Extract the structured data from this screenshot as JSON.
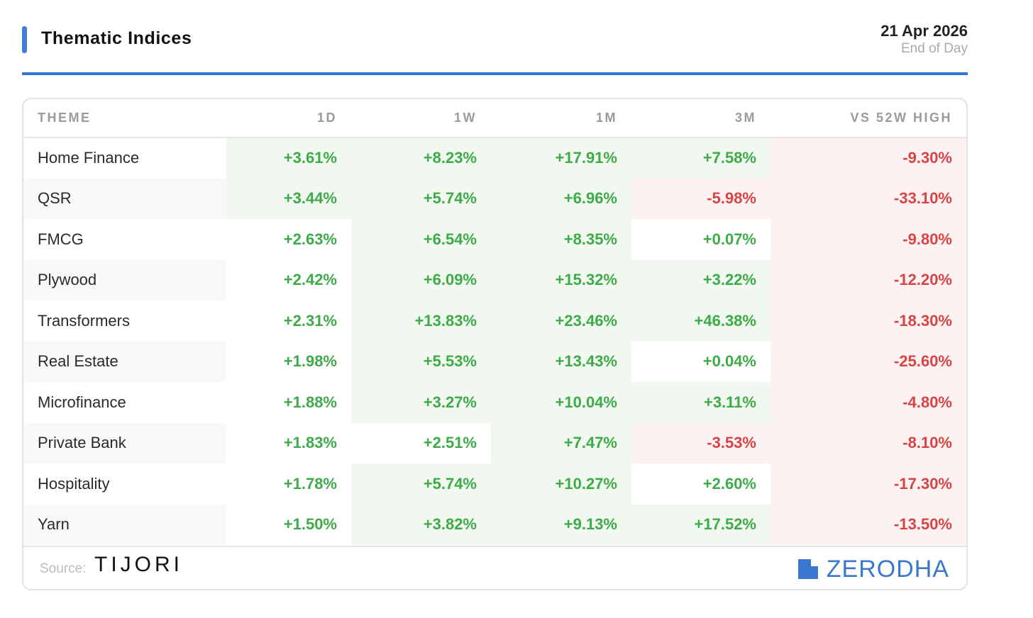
{
  "header": {
    "title": "Thematic Indices",
    "date": "21 Apr 2026",
    "subtitle": "End of Day"
  },
  "colors": {
    "accent": "#2f74cf",
    "positive": "#3eaa49",
    "negative": "#d64545",
    "positive_bg": "#f1f8ef",
    "negative_bg": "#fdf1f1"
  },
  "chart_data": {
    "type": "table",
    "title": "Thematic Indices",
    "columns": [
      "THEME",
      "1D",
      "1W",
      "1M",
      "3M",
      "VS 52W HIGH"
    ],
    "rows": [
      {
        "theme": "Home Finance",
        "values": [
          "+3.61%",
          "+8.23%",
          "+17.91%",
          "+7.58%",
          "-9.30%"
        ],
        "shade": [
          "green",
          "green",
          "green",
          "green",
          "red"
        ]
      },
      {
        "theme": "QSR",
        "values": [
          "+3.44%",
          "+5.74%",
          "+6.96%",
          "-5.98%",
          "-33.10%"
        ],
        "shade": [
          "green",
          "green",
          "green",
          "red",
          "red"
        ]
      },
      {
        "theme": "FMCG",
        "values": [
          "+2.63%",
          "+6.54%",
          "+8.35%",
          "+0.07%",
          "-9.80%"
        ],
        "shade": [
          "none",
          "green",
          "green",
          "none",
          "red"
        ]
      },
      {
        "theme": "Plywood",
        "values": [
          "+2.42%",
          "+6.09%",
          "+15.32%",
          "+3.22%",
          "-12.20%"
        ],
        "shade": [
          "none",
          "green",
          "green",
          "green",
          "red"
        ]
      },
      {
        "theme": "Transformers",
        "values": [
          "+2.31%",
          "+13.83%",
          "+23.46%",
          "+46.38%",
          "-18.30%"
        ],
        "shade": [
          "none",
          "green",
          "green",
          "green",
          "red"
        ]
      },
      {
        "theme": "Real Estate",
        "values": [
          "+1.98%",
          "+5.53%",
          "+13.43%",
          "+0.04%",
          "-25.60%"
        ],
        "shade": [
          "none",
          "green",
          "green",
          "none",
          "red"
        ]
      },
      {
        "theme": "Microfinance",
        "values": [
          "+1.88%",
          "+3.27%",
          "+10.04%",
          "+3.11%",
          "-4.80%"
        ],
        "shade": [
          "none",
          "green",
          "green",
          "green",
          "red"
        ]
      },
      {
        "theme": "Private Bank",
        "values": [
          "+1.83%",
          "+2.51%",
          "+7.47%",
          "-3.53%",
          "-8.10%"
        ],
        "shade": [
          "none",
          "none",
          "green",
          "red",
          "red"
        ]
      },
      {
        "theme": "Hospitality",
        "values": [
          "+1.78%",
          "+5.74%",
          "+10.27%",
          "+2.60%",
          "-17.30%"
        ],
        "shade": [
          "none",
          "green",
          "green",
          "none",
          "red"
        ]
      },
      {
        "theme": "Yarn",
        "values": [
          "+1.50%",
          "+3.82%",
          "+9.13%",
          "+17.52%",
          "-13.50%"
        ],
        "shade": [
          "none",
          "green",
          "green",
          "green",
          "red"
        ]
      }
    ]
  },
  "footer": {
    "source_label": "Source:",
    "source_brand": "TIJORI",
    "brand": "ZERODHA",
    "brand_icon": "zerodha-logo-icon"
  }
}
